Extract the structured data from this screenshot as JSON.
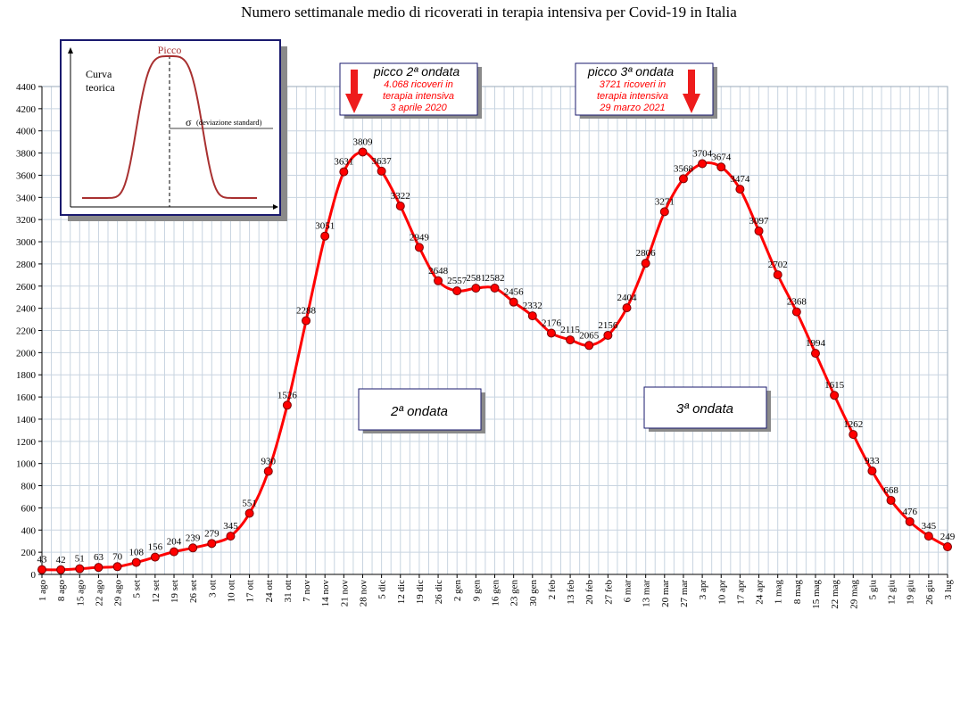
{
  "chart_data": {
    "type": "line",
    "title": "Numero settimanale medio di ricoverati in terapia intensiva per Covid-19 in Italia",
    "xlabel": "",
    "ylabel": "",
    "ylim": [
      0,
      4400
    ],
    "yticks": [
      0,
      200,
      400,
      600,
      800,
      1000,
      1200,
      1400,
      1600,
      1800,
      2000,
      2200,
      2400,
      2600,
      2800,
      3000,
      3200,
      3400,
      3600,
      3800,
      4000,
      4200,
      4400
    ],
    "grid": true,
    "categories": [
      "1 ago",
      "8 ago",
      "15 ago",
      "22 ago",
      "29 ago",
      "5 set",
      "12 set",
      "19 set",
      "26 set",
      "3 ott",
      "10 ott",
      "17 ott",
      "24 ott",
      "31 ott",
      "7 nov",
      "14 nov",
      "21 nov",
      "28 nov",
      "5 dic",
      "12 dic",
      "19 dic",
      "26 dic",
      "2 gen",
      "9 gen",
      "16 gen",
      "23 gen",
      "30 gen",
      "2 feb",
      "13 feb",
      "20 feb",
      "27 feb",
      "6 mar",
      "13 mar",
      "20 mar",
      "27 mar",
      "3 apr",
      "10 apr",
      "17 apr",
      "24 apr",
      "1 mag",
      "8 mag",
      "15 mag",
      "22 mag",
      "29 mag",
      "5 giu",
      "12 giu",
      "19 giu",
      "26 giu",
      "3 lug"
    ],
    "series": [
      {
        "color": "#ff0000",
        "values": [
          43,
          42,
          51,
          63,
          70,
          108,
          156,
          204,
          239,
          279,
          345,
          551,
          930,
          1526,
          2288,
          3051,
          3631,
          3809,
          3637,
          3322,
          2949,
          2648,
          2557,
          2581,
          2582,
          2456,
          2332,
          2176,
          2115,
          2065,
          2156,
          2404,
          2806,
          3271,
          3568,
          3704,
          3674,
          3474,
          3097,
          2702,
          2368,
          1994,
          1615,
          1262,
          933,
          668,
          476,
          345,
          249
        ],
        "labels": [
          "43",
          "42",
          "51",
          "63",
          "70",
          "108",
          "156",
          "204",
          "239",
          "279",
          "345",
          "551",
          "930",
          "1526",
          "2288",
          "3051",
          "3631",
          "3809",
          "3637",
          "3322",
          "2949",
          "2648",
          "2557",
          "2581",
          "2582",
          "2456",
          "2332",
          "2176",
          "2115",
          "2065",
          "2156",
          "2404",
          "2806",
          "3271",
          "3568",
          "3704",
          "3674",
          "3474",
          "3097",
          "2702",
          "2368",
          "1994",
          "1615",
          "1262",
          "933",
          "668",
          "476",
          "345",
          "249"
        ]
      }
    ],
    "annotations": {
      "inset": {
        "peak_label": "Picco",
        "curve_label_1": "Curva",
        "curve_label_2": "teorica",
        "sigma_symbol": "σ",
        "sigma_label": "(deviazione standard)"
      },
      "peak2": {
        "title": "picco 2ª ondata",
        "line1": "4.068 ricoveri in",
        "line2": "terapia intensiva",
        "line3": "3 aprile 2020"
      },
      "peak3": {
        "title": "picco 3ª ondata",
        "line1": "3721 ricoveri in",
        "line2": "terapia intensiva",
        "line3": "29 marzo 2021"
      },
      "wave2": "2ª ondata",
      "wave3": "3ª ondata"
    },
    "colors": {
      "line": "#ff0000",
      "marker": "#ff0000",
      "grid": "#c8d4e0",
      "box_border": "#1a1a6e",
      "inset_curve": "#a83030",
      "note_text": "#ff0000"
    }
  }
}
